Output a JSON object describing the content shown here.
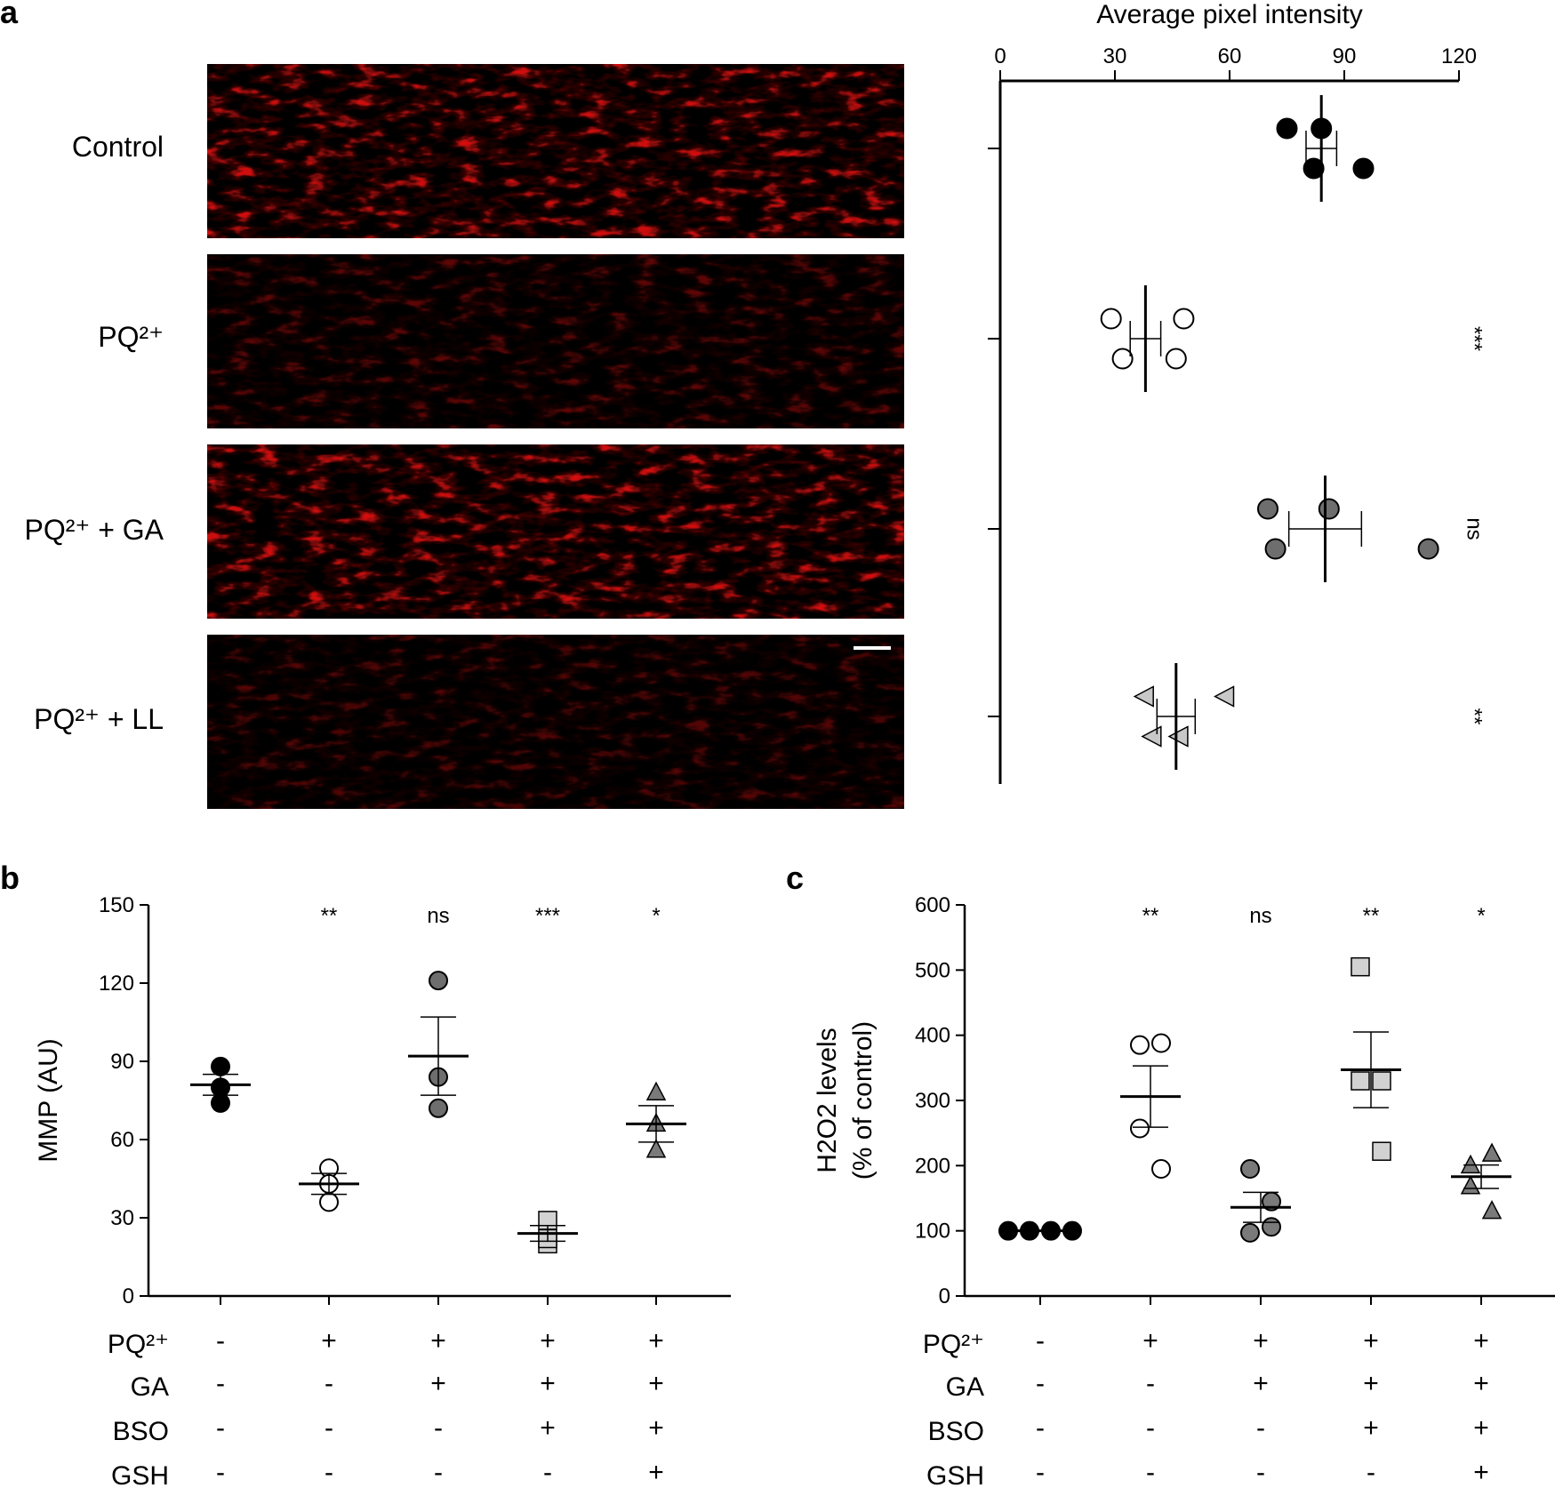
{
  "panel_letters": [
    "a",
    "b",
    "c"
  ],
  "micrograph_labels": [
    "Control",
    "PQ²⁺",
    "PQ²⁺ + GA",
    "PQ²⁺ + LL"
  ],
  "chart_data": [
    {
      "panel": "a",
      "type": "scatter",
      "orientation": "horizontal",
      "xlabel": "Average pixel intensity",
      "xlim": [
        0,
        120
      ],
      "xticks": [
        0,
        30,
        60,
        90,
        120
      ],
      "categories": [
        "Control",
        "PQ²⁺",
        "PQ²⁺ + GA",
        "PQ²⁺ + LL"
      ],
      "series": [
        {
          "values": [
            75,
            95,
            82,
            84
          ],
          "mean": 84,
          "sem": 4,
          "marker": "circle",
          "fill": "#000000",
          "annotation": ""
        },
        {
          "values": [
            29,
            46,
            32,
            48
          ],
          "mean": 38,
          "sem": 4,
          "marker": "circle",
          "fill": "#ffffff",
          "annotation": "***"
        },
        {
          "values": [
            70,
            112,
            72,
            86
          ],
          "mean": 85,
          "sem": 9.5,
          "marker": "circle",
          "fill": "#6e6e6e",
          "annotation": "ns"
        },
        {
          "values": [
            38,
            47,
            40,
            59
          ],
          "mean": 46,
          "sem": 5,
          "marker": "triangle-left",
          "fill": "#c8c8c8",
          "annotation": "**"
        }
      ],
      "grid": false
    },
    {
      "panel": "b",
      "type": "scatter",
      "ylabel": "MMP (AU)",
      "ylim": [
        0,
        150
      ],
      "yticks": [
        0,
        30,
        60,
        90,
        120,
        150
      ],
      "groups": [
        {
          "values": [
            88,
            80,
            74
          ],
          "mean": 81,
          "sem": 4,
          "marker": "circle",
          "fill": "#000000",
          "annotation": ""
        },
        {
          "values": [
            49,
            43,
            36
          ],
          "mean": 43,
          "sem": 4,
          "marker": "circle",
          "fill": "#ffffff",
          "annotation": "**"
        },
        {
          "values": [
            121,
            84,
            72
          ],
          "mean": 92,
          "sem": 15,
          "marker": "circle",
          "fill": "#6e6e6e",
          "annotation": "ns"
        },
        {
          "values": [
            29,
            20,
            22
          ],
          "mean": 24,
          "sem": 3,
          "marker": "square",
          "fill": "#d2d2d2",
          "annotation": "***"
        },
        {
          "values": [
            78,
            66,
            56
          ],
          "mean": 66,
          "sem": 7,
          "marker": "triangle",
          "fill": "#7a7a7a",
          "annotation": "*"
        }
      ],
      "conditions": [
        {
          "name": "PQ²⁺",
          "values": [
            "-",
            "+",
            "+",
            "+",
            "+"
          ]
        },
        {
          "name": "GA",
          "values": [
            "-",
            "-",
            "+",
            "+",
            "+"
          ]
        },
        {
          "name": "BSO",
          "values": [
            "-",
            "-",
            "-",
            "+",
            "+"
          ]
        },
        {
          "name": "GSH",
          "values": [
            "-",
            "-",
            "-",
            "-",
            "+"
          ]
        }
      ]
    },
    {
      "panel": "c",
      "type": "scatter",
      "ylabel_line1": "H2O2 levels",
      "ylabel_line2": "(% of control)",
      "ylim": [
        0,
        600
      ],
      "yticks": [
        0,
        100,
        200,
        300,
        400,
        500,
        600
      ],
      "groups": [
        {
          "values": [
            100,
            100,
            100,
            100
          ],
          "mean": 100,
          "sem": 0,
          "marker": "circle",
          "fill": "#000000",
          "annotation": ""
        },
        {
          "values": [
            385,
            388,
            257,
            195
          ],
          "mean": 306,
          "sem": 47,
          "marker": "circle",
          "fill": "#ffffff",
          "annotation": "**"
        },
        {
          "values": [
            195,
            145,
            97,
            106
          ],
          "mean": 136,
          "sem": 23,
          "marker": "circle",
          "fill": "#7a7a7a",
          "annotation": "ns"
        },
        {
          "values": [
            505,
            330,
            330,
            222
          ],
          "mean": 347,
          "sem": 58,
          "marker": "square",
          "fill": "#d2d2d2",
          "annotation": "**"
        },
        {
          "values": [
            200,
            218,
            168,
            130
          ],
          "mean": 183,
          "sem": 18,
          "marker": "triangle",
          "fill": "#7a7a7a",
          "annotation": "*"
        }
      ],
      "conditions": [
        {
          "name": "PQ²⁺",
          "values": [
            "-",
            "+",
            "+",
            "+",
            "+"
          ]
        },
        {
          "name": "GA",
          "values": [
            "-",
            "-",
            "+",
            "+",
            "+"
          ]
        },
        {
          "name": "BSO",
          "values": [
            "-",
            "-",
            "-",
            "+",
            "+"
          ]
        },
        {
          "name": "GSH",
          "values": [
            "-",
            "-",
            "-",
            "-",
            "+"
          ]
        }
      ]
    }
  ]
}
